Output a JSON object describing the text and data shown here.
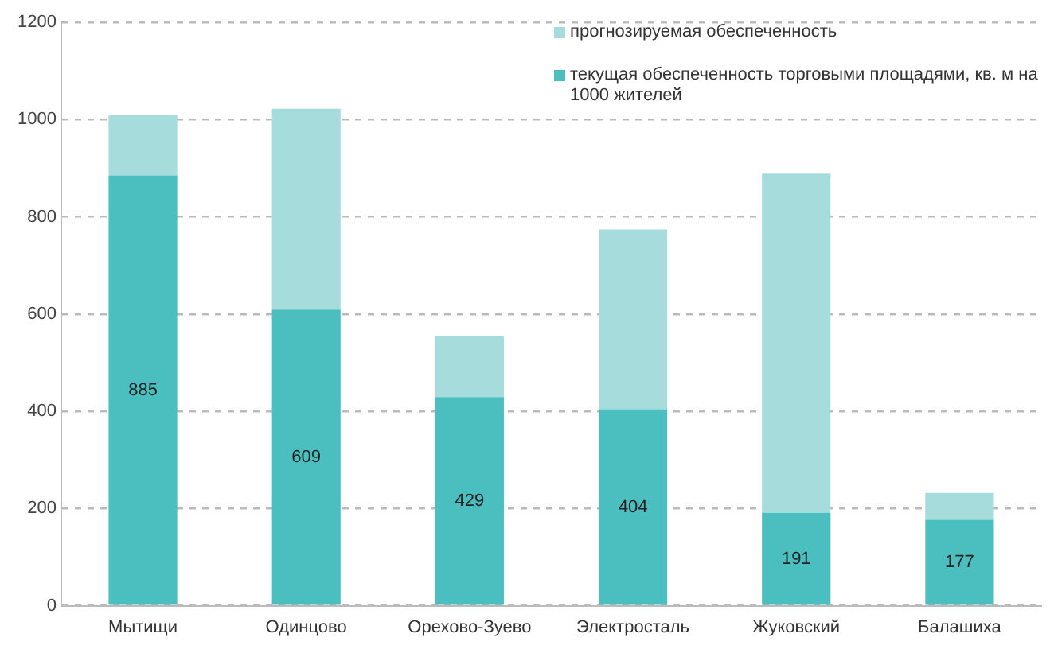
{
  "chart_data": {
    "type": "bar",
    "stacked": true,
    "categories": [
      "Мытищи",
      "Одинцово",
      "Орехово-Зуево",
      "Электросталь",
      "Жуковский",
      "Балашиха"
    ],
    "series": [
      {
        "name": "текущая обеспеченность торговыми площадями, кв. м на 1000 жителей",
        "color": "#4bbfbf",
        "values": [
          885,
          609,
          429,
          404,
          191,
          177
        ],
        "value_labels": [
          "885",
          "609",
          "429",
          "404",
          "191",
          "177"
        ]
      },
      {
        "name": "прогнозируемая обеспеченность",
        "color": "#a6dcdc",
        "values": [
          125,
          413,
          125,
          370,
          698,
          55
        ]
      }
    ],
    "ylim": [
      0,
      1200
    ],
    "yticks": [
      0,
      200,
      400,
      600,
      800,
      1000,
      1200
    ],
    "grid": "y",
    "legend": "top right"
  }
}
